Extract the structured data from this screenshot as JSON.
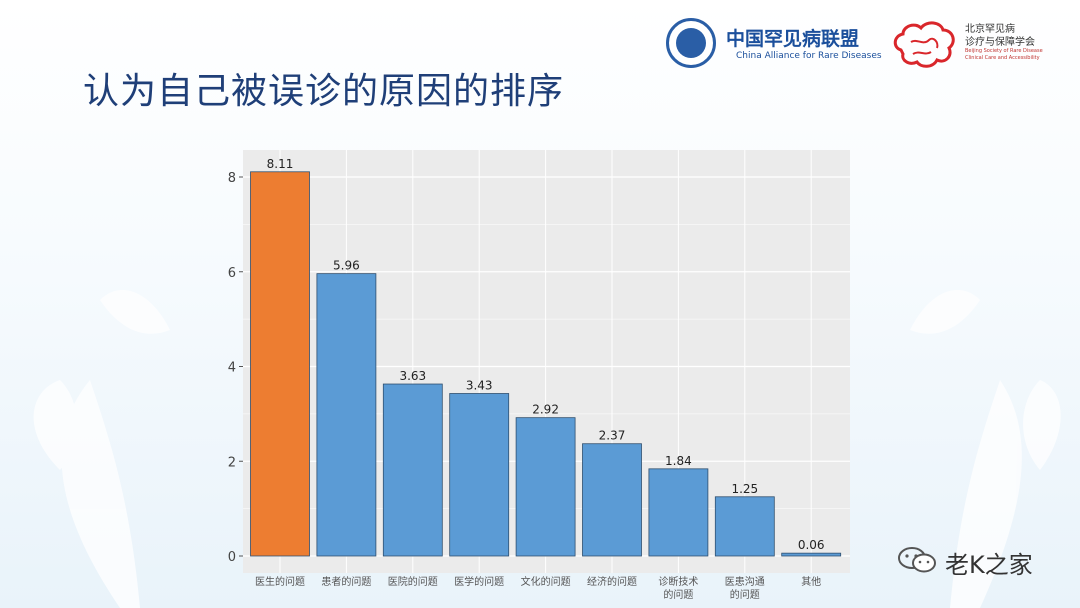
{
  "slide": {
    "title": "认为自己被误诊的原因的排序"
  },
  "logos": {
    "alliance": {
      "name_cn": "中国罕见病联盟",
      "name_en": "China Alliance for Rare Diseases",
      "color": "#1b4f9c"
    },
    "society": {
      "name_cn_line1": "北京罕见病",
      "name_cn_line2": "诊疗与保障学会",
      "name_en_line1": "Beijing Society of Rare Disease",
      "name_en_line2": "Clinical Care and Accessibility",
      "color": "#d9262b"
    }
  },
  "watermark": {
    "text": "老K之家",
    "icon": "wechat-icon"
  },
  "chart_data": {
    "type": "bar",
    "title": "",
    "xlabel": "",
    "ylabel": "",
    "categories": [
      "医生的问题",
      "患者的问题",
      "医院的问题",
      "医学的问题",
      "文化的问题",
      "经济的问题",
      "诊断技术\n的问题",
      "医患沟通\n的问题",
      "其他"
    ],
    "values": [
      8.11,
      5.96,
      3.63,
      3.43,
      2.92,
      2.37,
      1.84,
      1.25,
      0.06
    ],
    "value_labels": [
      "8.11",
      "5.96",
      "3.63",
      "3.43",
      "2.92",
      "2.37",
      "1.84",
      "1.25",
      "0.06"
    ],
    "yticks": [
      0,
      2,
      4,
      6,
      8
    ],
    "ytick_labels": [
      "0",
      "2",
      "4",
      "6",
      "8"
    ],
    "ylim": [
      0,
      8.6
    ],
    "grid": true,
    "legend": "none",
    "bar_colors": [
      "#ed7d31",
      "#5b9bd5",
      "#5b9bd5",
      "#5b9bd5",
      "#5b9bd5",
      "#5b9bd5",
      "#5b9bd5",
      "#5b9bd5",
      "#5b9bd5"
    ],
    "panel_color": "#ebebeb",
    "gridline_color": "#ffffff"
  }
}
